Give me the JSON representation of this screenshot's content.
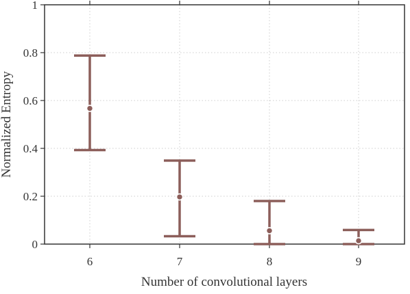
{
  "chart_data": {
    "type": "errorbar",
    "xlabel": "Number of convolutional layers",
    "ylabel": "Normalized Entropy",
    "categories": [
      "6",
      "7",
      "8",
      "9"
    ],
    "ylim": [
      0,
      1
    ],
    "yticks": [
      0,
      0.2,
      0.4,
      0.6,
      0.8,
      1
    ],
    "ytick_labels": [
      "0",
      "0.2",
      "0.4",
      "0.6",
      "0.8",
      "1"
    ],
    "grid": true,
    "series": [
      {
        "points": [
          {
            "x": "6",
            "mean": 0.567,
            "low": 0.393,
            "high": 0.788
          },
          {
            "x": "7",
            "mean": 0.197,
            "low": 0.033,
            "high": 0.349
          },
          {
            "x": "8",
            "mean": 0.056,
            "low": 0.0,
            "high": 0.18
          },
          {
            "x": "9",
            "mean": 0.014,
            "low": 0.0,
            "high": 0.059
          }
        ]
      }
    ],
    "colors": {
      "series": "#8c5e5a",
      "axes": "#333333",
      "grid": "#cccccc"
    }
  }
}
